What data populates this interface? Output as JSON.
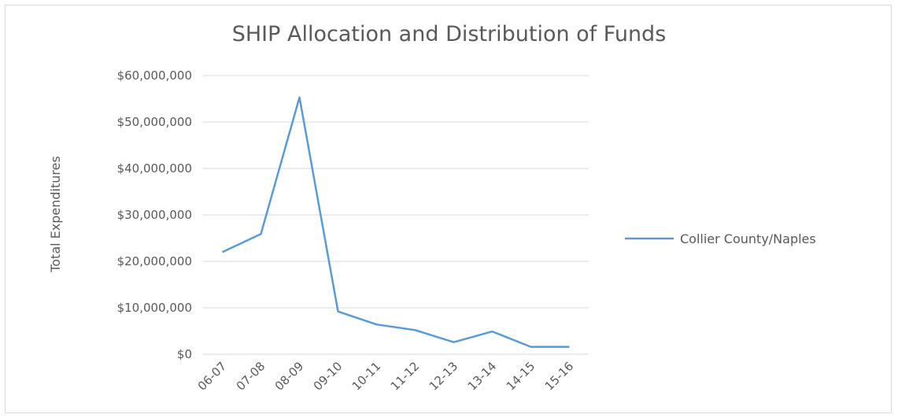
{
  "chart_data": {
    "type": "line",
    "title": "SHIP Allocation and Distribution of Funds",
    "xlabel": "",
    "ylabel": "Total Expenditures",
    "categories": [
      "06-07",
      "07-08",
      "08-09",
      "09-10",
      "10-11",
      "11-12",
      "12-13",
      "13-14",
      "14-15",
      "15-16"
    ],
    "series": [
      {
        "name": "Collier County/Naples",
        "color": "#5b9bd5",
        "values": [
          22000000,
          25900000,
          55300000,
          9200000,
          6400000,
          5200000,
          2600000,
          4900000,
          1600000,
          1600000
        ]
      }
    ],
    "ylim": [
      0,
      60000000
    ],
    "yticks": [
      0,
      10000000,
      20000000,
      30000000,
      40000000,
      50000000,
      60000000
    ],
    "ytick_labels": [
      "$0",
      "$10,000,000",
      "$20,000,000",
      "$30,000,000",
      "$40,000,000",
      "$50,000,000",
      "$60,000,000"
    ],
    "grid": true,
    "legend_position": "right"
  }
}
